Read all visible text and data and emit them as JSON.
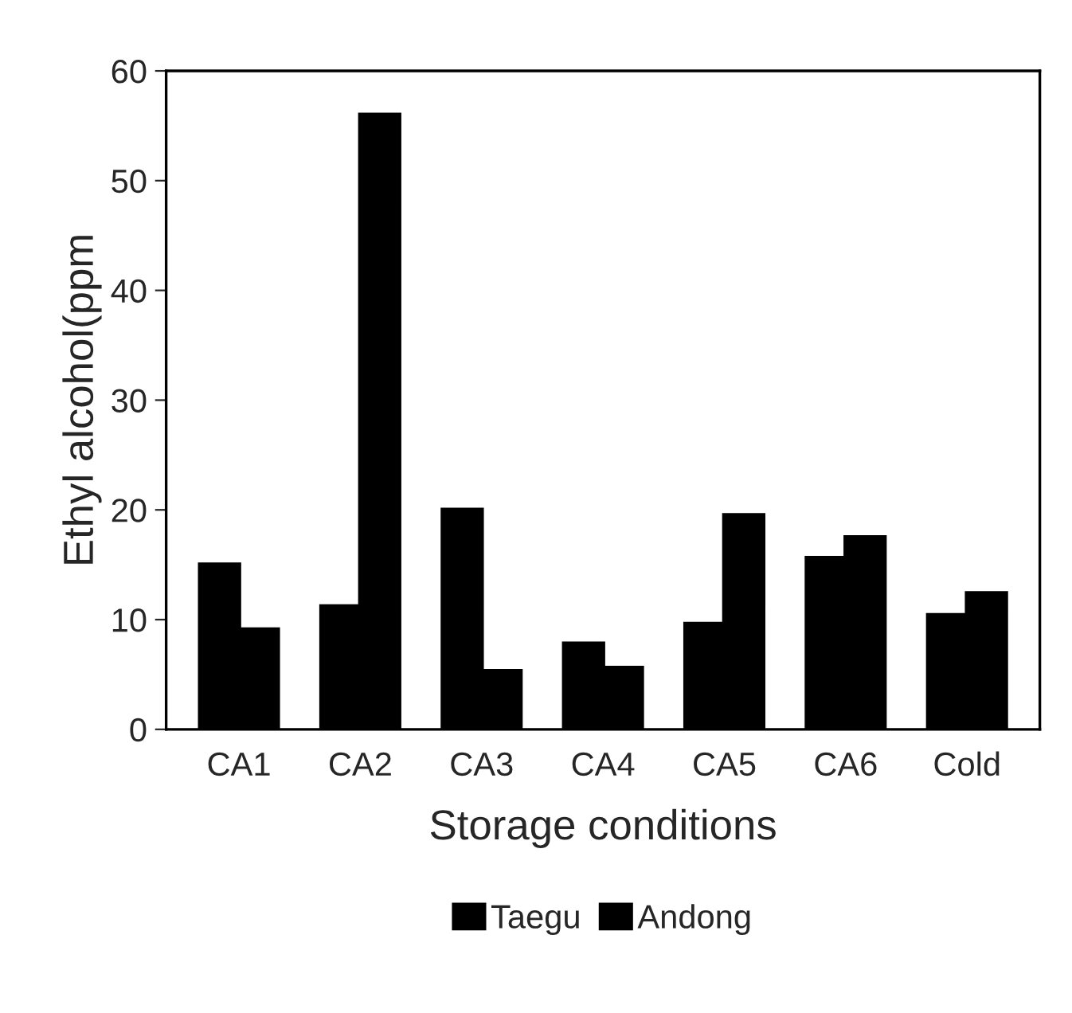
{
  "chart_data": {
    "type": "bar",
    "xlabel": "Storage conditions",
    "ylabel": "Ethyl alcohol(ppm",
    "categories": [
      "CA1",
      "CA2",
      "CA3",
      "CA4",
      "CA5",
      "CA6",
      "Cold"
    ],
    "series": [
      {
        "name": "Taegu",
        "color": "#000000",
        "values": [
          15,
          11.2,
          20,
          7.8,
          9.6,
          15.6,
          10.4
        ]
      },
      {
        "name": "Andong",
        "color": "#000000",
        "values": [
          9.1,
          56,
          5.3,
          5.6,
          19.5,
          17.5,
          12.4
        ]
      }
    ],
    "ylim": [
      0,
      60
    ],
    "yticks": [
      0,
      10,
      20,
      30,
      40,
      50,
      60
    ],
    "grid": false,
    "legend": "bottom"
  }
}
